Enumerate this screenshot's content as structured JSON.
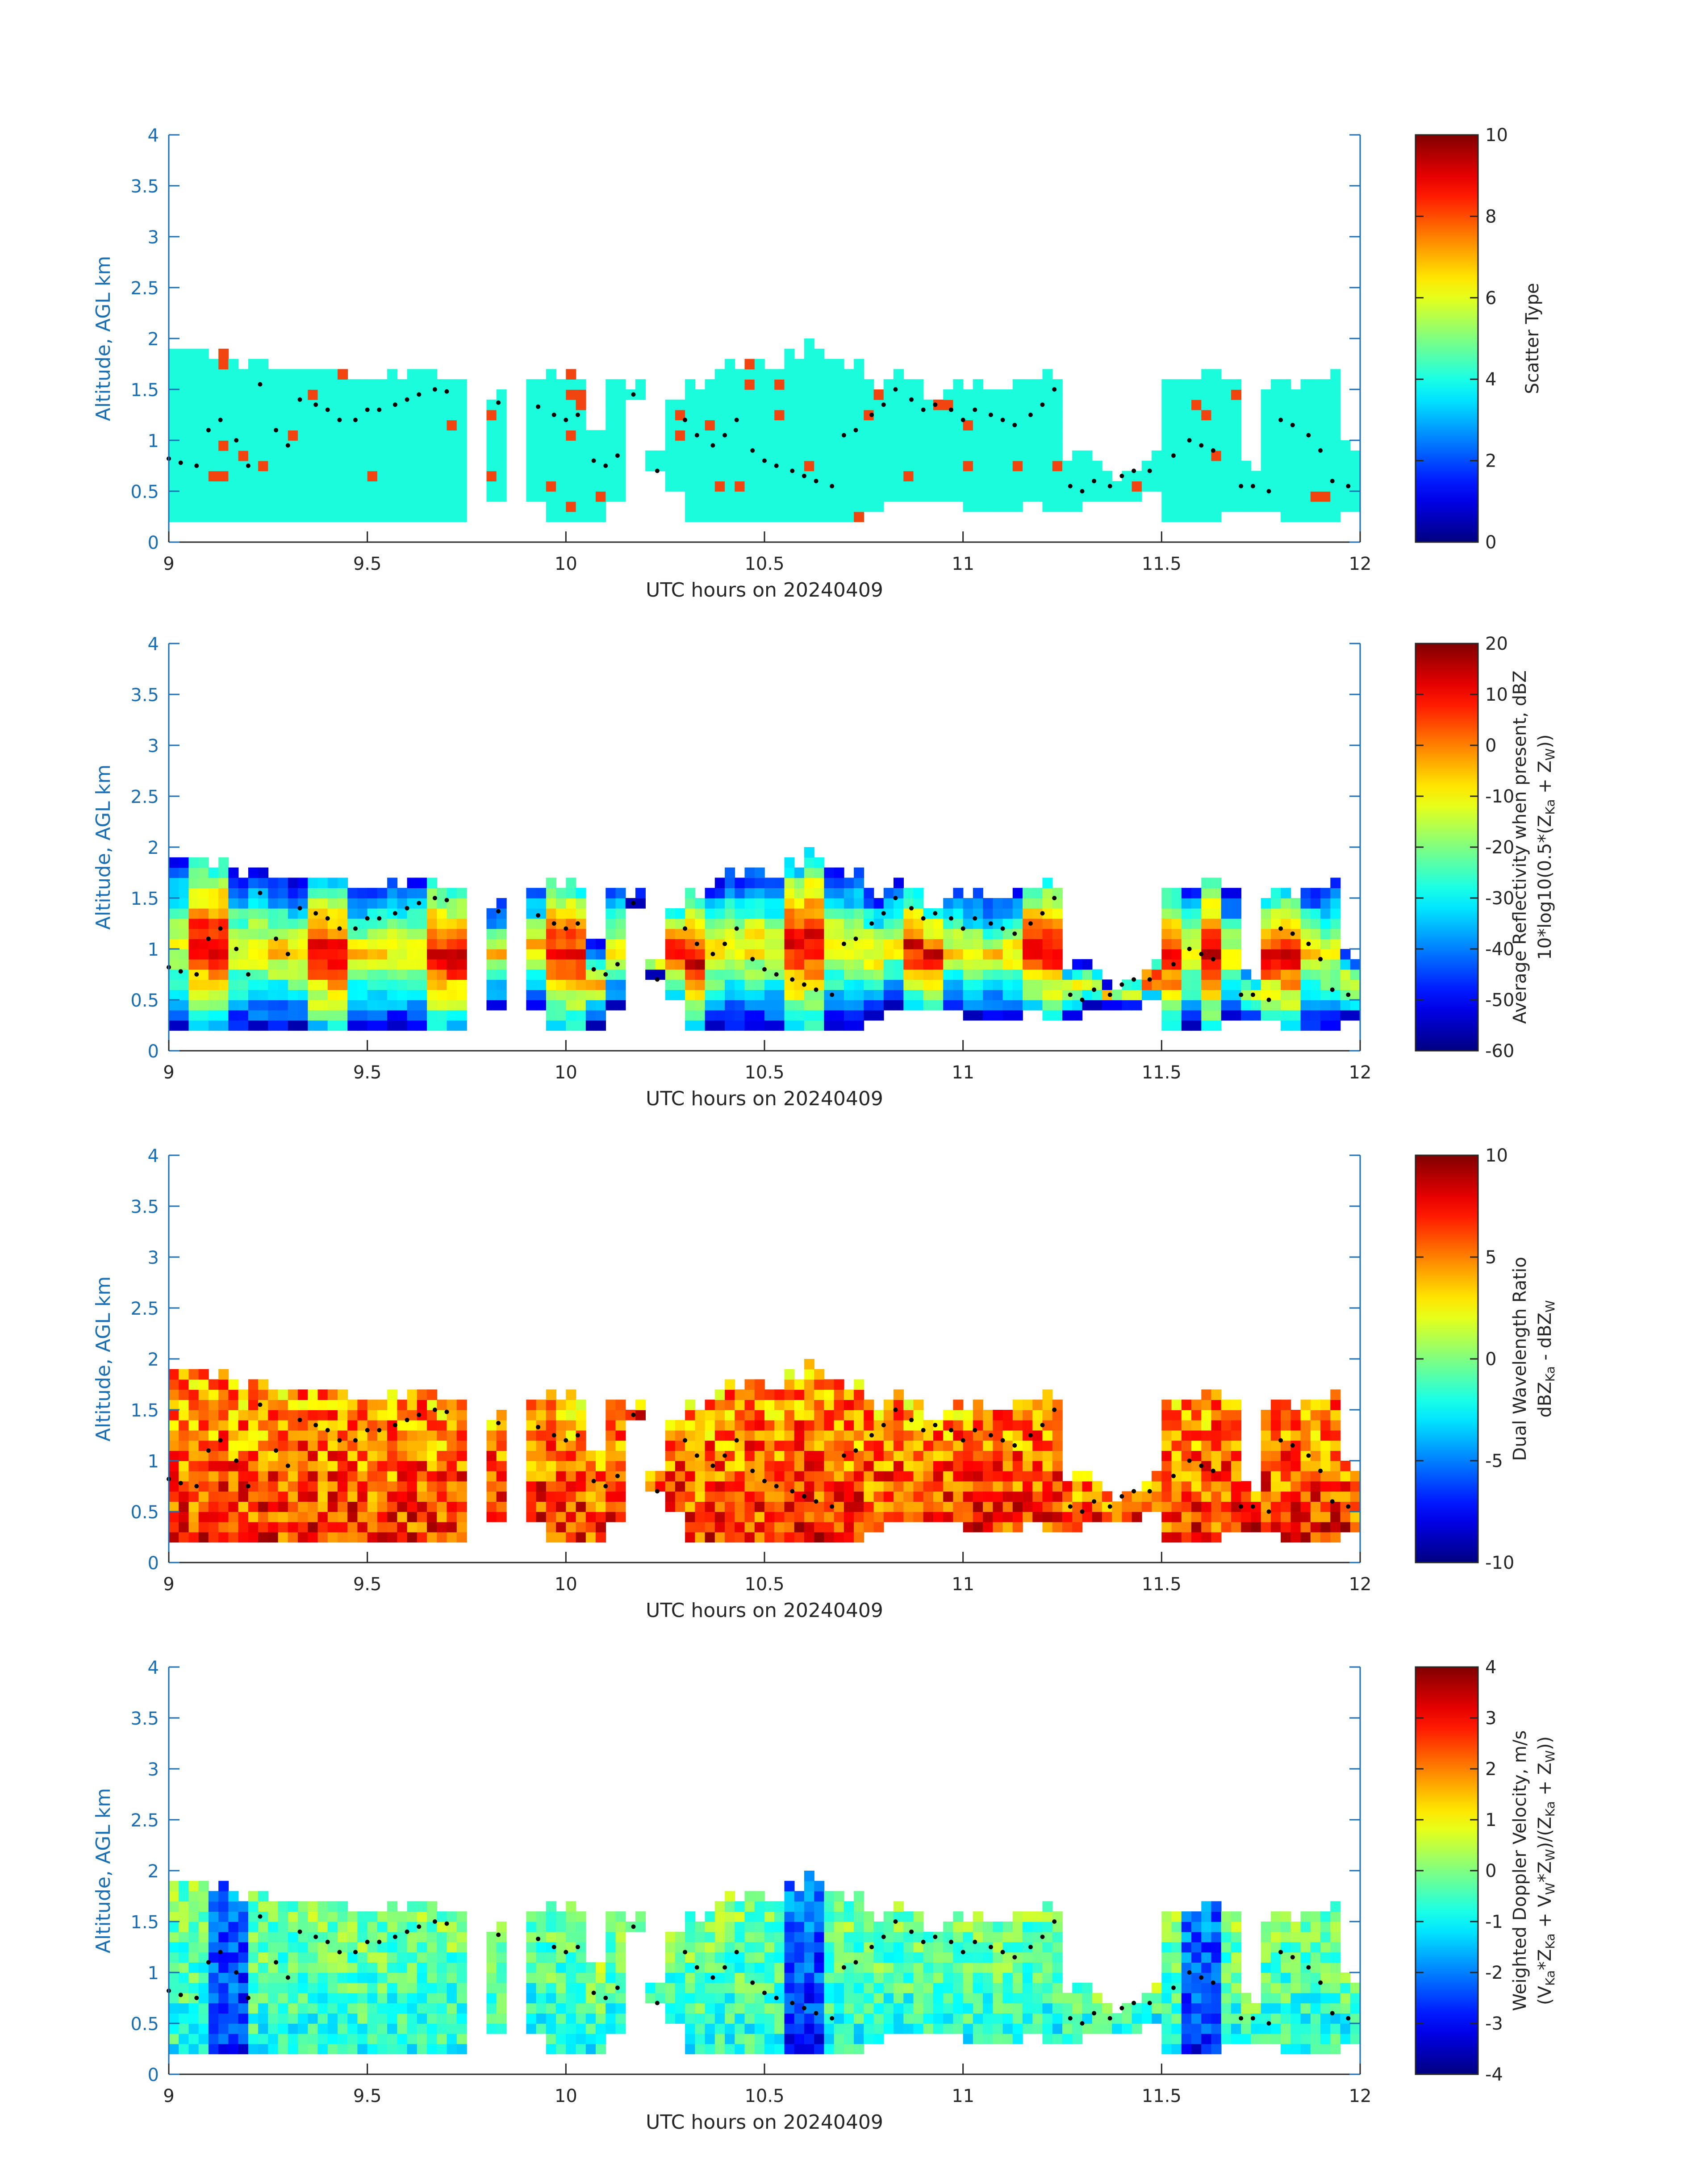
{
  "chart_data": [
    {
      "type": "heatmap",
      "xlabel": "UTC hours on 20240409",
      "ylabel": "Altitude, AGL km",
      "xlim": [
        9,
        12
      ],
      "ylim": [
        0,
        4
      ],
      "xticks": [
        "9",
        "9.5",
        "10",
        "10.5",
        "11",
        "11.5",
        "12"
      ],
      "yticks": [
        "0",
        "0.5",
        "1",
        "1.5",
        "2",
        "2.5",
        "3",
        "3.5",
        "4"
      ],
      "colorbar": {
        "label_lines": [
          "Scatter Type"
        ],
        "range": [
          0,
          10
        ],
        "ticks": [
          "0",
          "2",
          "4",
          "6",
          "8",
          "10"
        ]
      },
      "pattern": "scatter",
      "cell_colors": {
        "main": "#1afcdc",
        "minority": "#f2440f"
      }
    },
    {
      "type": "heatmap",
      "xlabel": "UTC hours on 20240409",
      "ylabel": "Altitude, AGL km",
      "xlim": [
        9,
        12
      ],
      "ylim": [
        0,
        4
      ],
      "xticks": [
        "9",
        "9.5",
        "10",
        "10.5",
        "11",
        "11.5",
        "12"
      ],
      "yticks": [
        "0",
        "0.5",
        "1",
        "1.5",
        "2",
        "2.5",
        "3",
        "3.5",
        "4"
      ],
      "colorbar": {
        "label_lines": [
          "Average Reflectivity when present, dBZ",
          "10*log10(0.5*(Z",
          "Ka",
          " + Z",
          "W",
          "))"
        ],
        "range": [
          -60,
          20
        ],
        "ticks": [
          "-60",
          "-50",
          "-40",
          "-30",
          "-20",
          "-10",
          "0",
          "10",
          "20"
        ]
      },
      "pattern": "reflectivity"
    },
    {
      "type": "heatmap",
      "xlabel": "UTC hours on 20240409",
      "ylabel": "Altitude, AGL km",
      "xlim": [
        9,
        12
      ],
      "ylim": [
        0,
        4
      ],
      "xticks": [
        "9",
        "9.5",
        "10",
        "10.5",
        "11",
        "11.5",
        "12"
      ],
      "yticks": [
        "0",
        "0.5",
        "1",
        "1.5",
        "2",
        "2.5",
        "3",
        "3.5",
        "4"
      ],
      "colorbar": {
        "label_lines": [
          "Dual Wavelength Ratio",
          "dBZ",
          "Ka",
          " - dBZ",
          "W"
        ],
        "range": [
          -10,
          10
        ],
        "ticks": [
          "-10",
          "-5",
          "0",
          "5",
          "10"
        ]
      },
      "pattern": "dwr"
    },
    {
      "type": "heatmap",
      "xlabel": "UTC hours on 20240409",
      "ylabel": "Altitude, AGL km",
      "xlim": [
        9,
        12
      ],
      "ylim": [
        0,
        4
      ],
      "xticks": [
        "9",
        "9.5",
        "10",
        "10.5",
        "11",
        "11.5",
        "12"
      ],
      "yticks": [
        "0",
        "0.5",
        "1",
        "1.5",
        "2",
        "2.5",
        "3",
        "3.5",
        "4"
      ],
      "colorbar": {
        "label_lines": [
          "Weighted Doppler Velocity, m/s",
          "(V",
          "Ka",
          "*Z",
          "Ka",
          " + V",
          "W",
          "*Z",
          "W",
          ")/(Z",
          "Ka",
          " + Z",
          "W",
          "))"
        ],
        "range": [
          -4,
          4
        ],
        "ticks": [
          "-4",
          "-3",
          "-2",
          "-1",
          "0",
          "1",
          "2",
          "3",
          "4"
        ]
      },
      "pattern": "velocity"
    }
  ],
  "cloud_profile": {
    "time_bins": [
      9.0,
      9.05,
      9.1,
      9.15,
      9.2,
      9.25,
      9.3,
      9.35,
      9.4,
      9.45,
      9.5,
      9.55,
      9.6,
      9.65,
      9.7,
      9.75,
      9.8,
      9.85,
      9.9,
      9.95,
      10.0,
      10.05,
      10.1,
      10.15,
      10.2,
      10.25,
      10.3,
      10.35,
      10.4,
      10.45,
      10.5,
      10.55,
      10.6,
      10.65,
      10.7,
      10.75,
      10.8,
      10.85,
      10.9,
      10.95,
      11.0,
      11.05,
      11.1,
      11.15,
      11.2,
      11.25,
      11.3,
      11.35,
      11.4,
      11.45,
      11.5,
      11.55,
      11.6,
      11.65,
      11.7,
      11.75,
      11.8,
      11.85,
      11.9,
      11.95
    ],
    "base_km": [
      0.2,
      0.2,
      0.2,
      0.2,
      0.2,
      0.2,
      0.2,
      0.2,
      0.2,
      0.2,
      0.2,
      0.2,
      0.2,
      0.2,
      0.2,
      null,
      0.4,
      null,
      0.4,
      0.2,
      0.2,
      0.2,
      0.4,
      1.4,
      0.7,
      0.5,
      0.2,
      0.2,
      0.2,
      0.2,
      0.2,
      0.2,
      0.2,
      0.2,
      0.2,
      0.3,
      0.4,
      0.4,
      0.4,
      0.4,
      0.3,
      0.3,
      0.3,
      0.4,
      0.3,
      0.3,
      0.4,
      0.4,
      0.4,
      0.5,
      0.2,
      0.2,
      0.2,
      0.3,
      0.3,
      0.3,
      0.2,
      0.2,
      0.2,
      0.3
    ],
    "top_km": [
      1.8,
      1.85,
      1.8,
      1.7,
      1.75,
      1.7,
      1.65,
      1.65,
      1.65,
      1.6,
      1.6,
      1.6,
      1.65,
      1.6,
      1.55,
      null,
      1.4,
      null,
      1.6,
      1.6,
      1.6,
      1.0,
      1.5,
      1.45,
      0.9,
      1.4,
      1.5,
      1.6,
      1.7,
      1.75,
      1.7,
      1.75,
      1.85,
      1.75,
      1.7,
      1.5,
      1.6,
      1.5,
      1.4,
      1.5,
      1.5,
      1.45,
      1.5,
      1.6,
      1.6,
      0.8,
      0.8,
      0.6,
      0.7,
      0.8,
      1.6,
      1.6,
      1.65,
      1.5,
      0.7,
      1.5,
      1.5,
      1.6,
      1.6,
      0.9
    ],
    "dots_x": [
      9.0,
      9.03,
      9.07,
      9.1,
      9.13,
      9.17,
      9.2,
      9.23,
      9.27,
      9.3,
      9.33,
      9.37,
      9.4,
      9.43,
      9.47,
      9.5,
      9.53,
      9.57,
      9.6,
      9.63,
      9.67,
      9.7,
      9.83,
      9.93,
      9.97,
      10.0,
      10.03,
      10.07,
      10.1,
      10.13,
      10.17,
      10.23,
      10.3,
      10.33,
      10.37,
      10.4,
      10.43,
      10.47,
      10.5,
      10.53,
      10.57,
      10.6,
      10.63,
      10.67,
      10.7,
      10.73,
      10.77,
      10.8,
      10.83,
      10.87,
      10.9,
      10.93,
      10.97,
      11.0,
      11.03,
      11.07,
      11.1,
      11.13,
      11.17,
      11.2,
      11.23,
      11.27,
      11.3,
      11.33,
      11.37,
      11.4,
      11.43,
      11.47,
      11.53,
      11.57,
      11.6,
      11.63,
      11.7,
      11.73,
      11.77,
      11.8,
      11.83,
      11.87,
      11.9,
      11.93,
      11.97
    ],
    "dots_y": [
      0.82,
      0.78,
      0.75,
      1.1,
      1.2,
      1.0,
      0.75,
      1.55,
      1.1,
      0.95,
      1.4,
      1.35,
      1.3,
      1.2,
      1.2,
      1.3,
      1.3,
      1.35,
      1.4,
      1.45,
      1.5,
      1.48,
      1.37,
      1.33,
      1.25,
      1.2,
      1.25,
      0.8,
      0.75,
      0.85,
      1.45,
      0.7,
      1.2,
      1.05,
      0.95,
      1.05,
      1.2,
      0.9,
      0.8,
      0.75,
      0.7,
      0.65,
      0.6,
      0.55,
      1.05,
      1.1,
      1.25,
      1.35,
      1.5,
      1.4,
      1.3,
      1.35,
      1.3,
      1.2,
      1.3,
      1.25,
      1.2,
      1.15,
      1.25,
      1.35,
      1.5,
      0.55,
      0.5,
      0.6,
      0.55,
      0.65,
      0.7,
      0.7,
      0.85,
      1.0,
      0.95,
      0.9,
      0.55,
      0.55,
      0.5,
      1.2,
      1.15,
      1.05,
      0.9,
      0.6,
      0.55
    ]
  }
}
